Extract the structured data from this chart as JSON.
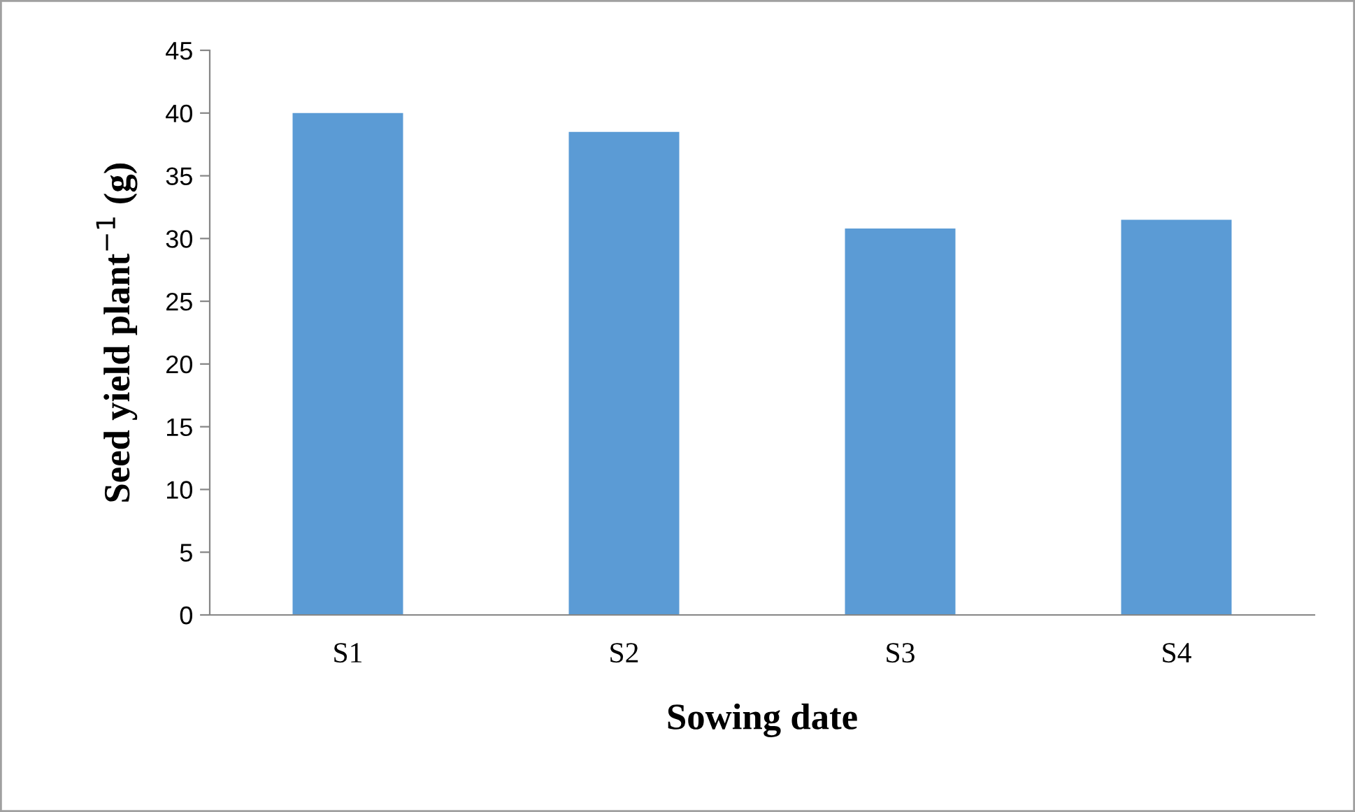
{
  "chart_data": {
    "type": "bar",
    "xlabel": "Sowing date",
    "ylabel": "Seed yield plant$^{−1}$ (g)",
    "categories": [
      "S1",
      "S2",
      "S3",
      "S4"
    ],
    "values": [
      40.0,
      38.5,
      30.8,
      31.5
    ],
    "color": "#5b9bd5",
    "ylim": [
      0,
      45
    ],
    "yticks": [
      0,
      5,
      10,
      15,
      20,
      25,
      30,
      35,
      40,
      45
    ],
    "grid": false,
    "legend": false
  }
}
